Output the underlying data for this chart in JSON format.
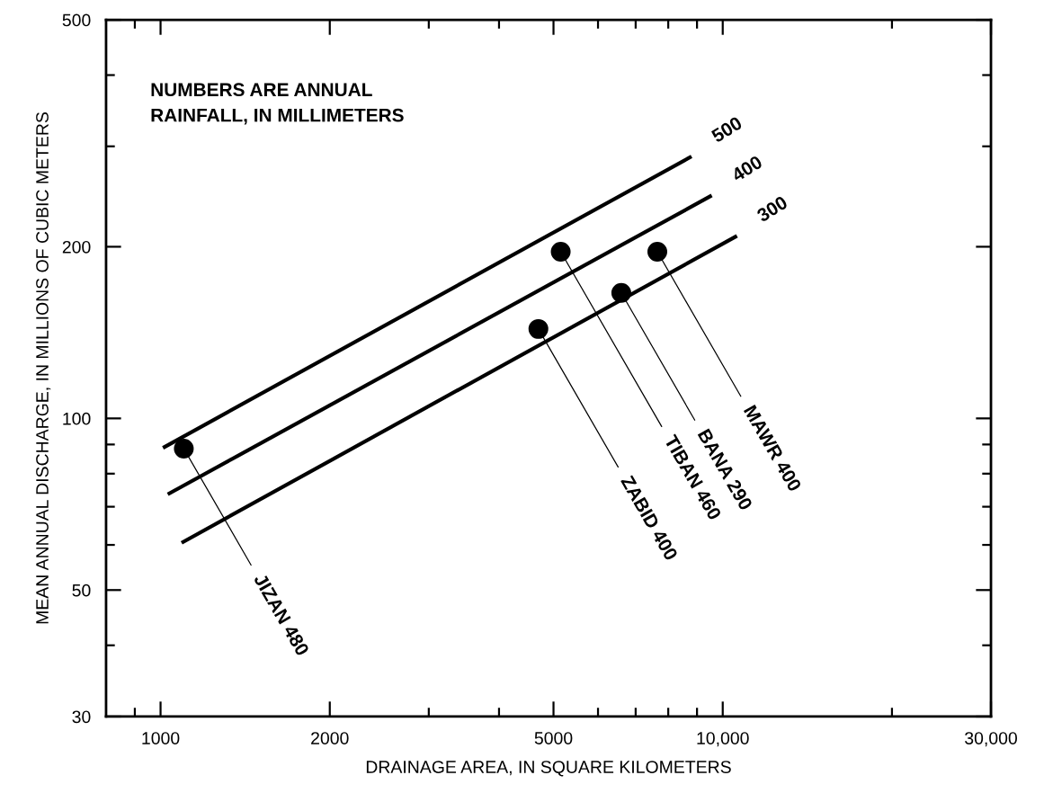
{
  "chart_data": {
    "type": "scatter",
    "xlabel": "DRAINAGE AREA, IN SQUARE KILOMETERS",
    "ylabel": "MEAN ANNUAL DISCHARGE, IN MILLIONS OF CUBIC METERS",
    "log": "xy",
    "xlim": [
      800,
      30000
    ],
    "ylim": [
      30,
      500
    ],
    "xticks": [
      {
        "value": 900,
        "label": null
      },
      1000,
      2000,
      {
        "value": 3000,
        "label": null
      },
      {
        "value": 4000,
        "label": null
      },
      5000,
      {
        "value": 6000,
        "label": null
      },
      {
        "value": 7000,
        "label": null
      },
      {
        "value": 8000,
        "label": null
      },
      {
        "value": 9000,
        "label": null
      },
      {
        "value": 10000,
        "label": "10,000"
      },
      {
        "value": 20000,
        "label": null
      },
      {
        "value": 30000,
        "label": "30,000"
      }
    ],
    "yticks": [
      30,
      {
        "value": 40,
        "label": null
      },
      50,
      {
        "value": 60,
        "label": null
      },
      {
        "value": 70,
        "label": null
      },
      {
        "value": 80,
        "label": null
      },
      {
        "value": 90,
        "label": null
      },
      100,
      200,
      {
        "value": 300,
        "label": null
      },
      {
        "value": 400,
        "label": null
      },
      500
    ],
    "grid": false,
    "legend": false,
    "series": [
      {
        "type": "line",
        "name": "500",
        "color": "#000000",
        "x": [
          1010,
          8800
        ],
        "values": [
          88.8,
          288
        ]
      },
      {
        "type": "line",
        "name": "400",
        "color": "#000000",
        "x": [
          1030,
          9560
        ],
        "values": [
          73.6,
          246
        ]
      },
      {
        "type": "line",
        "name": "300",
        "color": "#000000",
        "x": [
          1090,
          10600
        ],
        "values": [
          60.5,
          209
        ]
      },
      {
        "color": "#000000",
        "marker": "circle",
        "x": [
          1100,
          4700,
          5150,
          6600,
          7650
        ],
        "values": [
          88.5,
          143.5,
          196,
          166,
          196
        ]
      }
    ],
    "annotations": [
      "NUMBERS ARE ANNUAL\nRAINFALL, IN MILLIMETERS",
      {
        "text": "JIZAN 480",
        "x": 1100,
        "y": 88.5
      },
      {
        "text": "ZABID 400",
        "x": 4700,
        "y": 143.5
      },
      {
        "text": "TIBAN 460",
        "x": 5150,
        "y": 196
      },
      {
        "text": "BANA 290",
        "x": 6600,
        "y": 166
      },
      {
        "text": "MAWR 400",
        "x": 7650,
        "y": 196
      }
    ]
  }
}
